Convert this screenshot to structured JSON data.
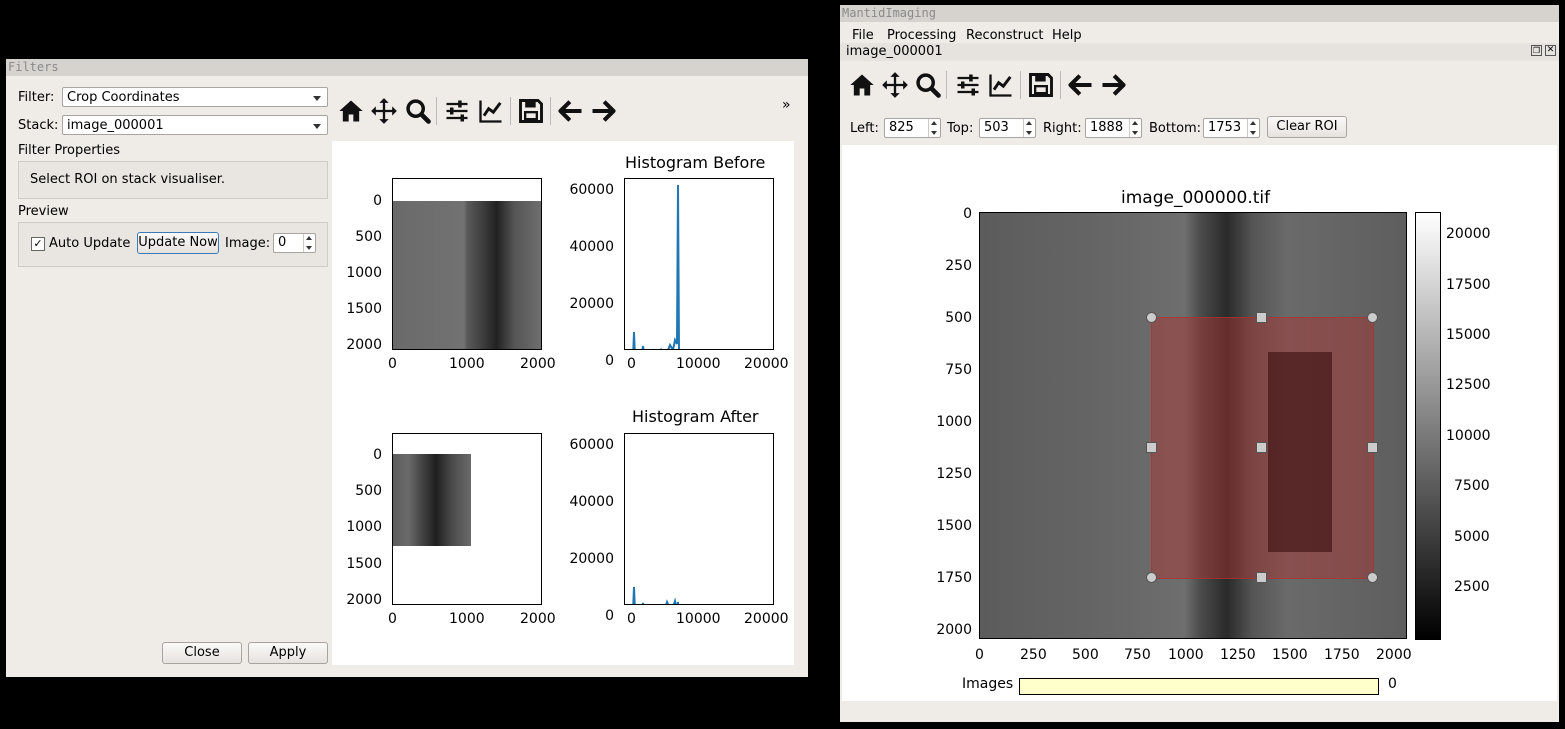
{
  "filters_window": {
    "title": "Filters",
    "filter_label": "Filter:",
    "filter_value": "Crop Coordinates",
    "stack_label": "Stack:",
    "stack_value": "image_000001",
    "filter_properties_label": "Filter Properties",
    "roi_hint": "Select ROI on stack visualiser.",
    "preview_label": "Preview",
    "auto_update_label": "Auto Update",
    "auto_update_checked": true,
    "update_now_label": "Update Now",
    "image_label": "Image:",
    "image_value": "0",
    "close_label": "Close",
    "apply_label": "Apply",
    "toolbar_overflow": "»",
    "toolbar_icons": [
      "home-icon",
      "pan-icon",
      "zoom-icon",
      "configure-icon",
      "edit-curves-icon",
      "save-icon",
      "back-icon",
      "forward-icon"
    ],
    "before_image_axes": {
      "y_ticks": [
        "0",
        "500",
        "1000",
        "1500",
        "2000"
      ],
      "x_ticks": [
        "0",
        "1000",
        "2000"
      ]
    },
    "after_image_axes": {
      "y_ticks": [
        "0",
        "500",
        "1000",
        "1500",
        "2000"
      ],
      "x_ticks": [
        "0",
        "1000",
        "2000"
      ]
    },
    "hist_before_title": "Histogram Before",
    "hist_after_title": "Histogram After",
    "hist_y_ticks": [
      "60000",
      "40000",
      "20000",
      "0"
    ],
    "hist_x_ticks": [
      "0",
      "10000",
      "20000"
    ],
    "line_color": "#1f77b4"
  },
  "main_window": {
    "title": "MantidImaging",
    "menu": [
      "File",
      "Processing",
      "Reconstruct",
      "Help"
    ],
    "dock_title": "image_000001",
    "roi": {
      "left_label": "Left:",
      "left_value": "825",
      "top_label": "Top:",
      "top_value": "503",
      "right_label": "Right:",
      "right_value": "1888",
      "bottom_label": "Bottom:",
      "bottom_value": "1753",
      "clear_label": "Clear ROI"
    },
    "image_title": "image_000000.tif",
    "y_ticks": [
      "0",
      "250",
      "500",
      "750",
      "1000",
      "1250",
      "1500",
      "1750",
      "2000"
    ],
    "x_ticks": [
      "0",
      "250",
      "500",
      "750",
      "1000",
      "1250",
      "1500",
      "1750",
      "2000"
    ],
    "colorbar_ticks": [
      "20000",
      "17500",
      "15000",
      "12500",
      "10000",
      "7500",
      "5000",
      "2500"
    ],
    "images_label": "Images",
    "images_value": "0",
    "roi_color": "#b03030",
    "slider_color": "#ffffcc"
  }
}
